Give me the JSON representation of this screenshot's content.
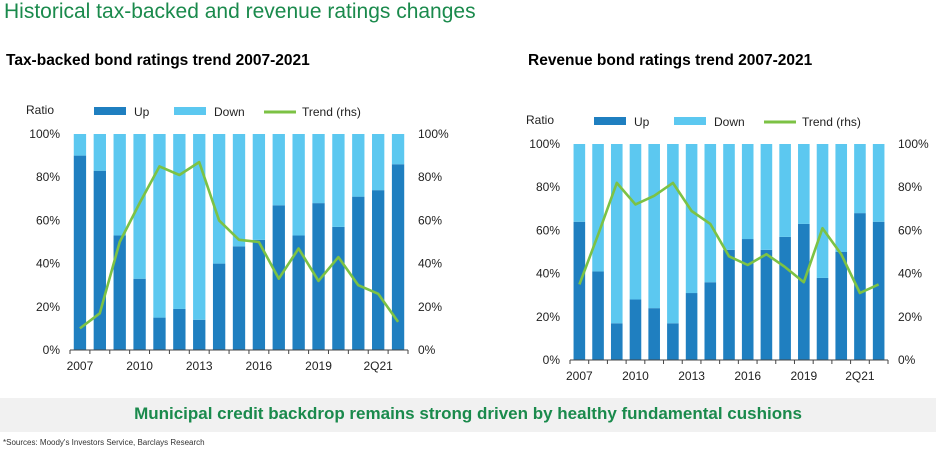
{
  "page": {
    "title": "Historical tax-backed and revenue ratings changes",
    "banner": "Municipal credit backdrop remains strong driven by healthy fundamental cushions",
    "footnote": "*Sources: Moody's Investors Service, Barclays Research"
  },
  "colors": {
    "up": "#1f7fc0",
    "down": "#5cc8f0",
    "trend": "#7cc244",
    "title": "#1a8a4c"
  },
  "chart_data": [
    {
      "type": "bar",
      "stacked": true,
      "title": "Tax-backed bond ratings trend 2007-2021",
      "ylabel": "Ratio",
      "ylim": [
        0,
        100
      ],
      "y2lim": [
        0,
        100
      ],
      "yticks": [
        "0%",
        "20%",
        "40%",
        "60%",
        "80%",
        "100%"
      ],
      "y2ticks": [
        "0%",
        "20%",
        "40%",
        "60%",
        "80%",
        "100%"
      ],
      "xticks": [
        {
          "label": "2007",
          "index": 0
        },
        {
          "label": "2010",
          "index": 3
        },
        {
          "label": "2013",
          "index": 6
        },
        {
          "label": "2016",
          "index": 9
        },
        {
          "label": "2019",
          "index": 12
        },
        {
          "label": "2Q21",
          "index": 15
        }
      ],
      "legend": [
        "Up",
        "Down",
        "Trend (rhs)"
      ],
      "legend_position": "top",
      "series": [
        {
          "name": "Up",
          "values": [
            90,
            83,
            53,
            33,
            15,
            19,
            14,
            40,
            48,
            51,
            67,
            53,
            68,
            57,
            71,
            74,
            86
          ]
        },
        {
          "name": "Down",
          "values": [
            10,
            17,
            47,
            67,
            85,
            81,
            86,
            60,
            52,
            49,
            33,
            47,
            32,
            43,
            29,
            26,
            14
          ]
        },
        {
          "name": "Trend (rhs)",
          "axis": "right",
          "values": [
            10,
            17,
            50,
            68,
            85,
            81,
            87,
            60,
            51,
            50,
            33,
            47,
            32,
            43,
            30,
            26,
            13
          ]
        }
      ]
    },
    {
      "type": "bar",
      "stacked": true,
      "title": "Revenue bond ratings trend 2007-2021",
      "ylabel": "Ratio",
      "ylim": [
        0,
        100
      ],
      "y2lim": [
        0,
        100
      ],
      "yticks": [
        "0%",
        "20%",
        "40%",
        "60%",
        "80%",
        "100%"
      ],
      "y2ticks": [
        "0%",
        "20%",
        "40%",
        "60%",
        "80%",
        "100%"
      ],
      "xticks": [
        {
          "label": "2007",
          "index": 0
        },
        {
          "label": "2010",
          "index": 3
        },
        {
          "label": "2013",
          "index": 6
        },
        {
          "label": "2016",
          "index": 9
        },
        {
          "label": "2019",
          "index": 12
        },
        {
          "label": "2Q21",
          "index": 15
        }
      ],
      "legend": [
        "Up",
        "Down",
        "Trend (rhs)"
      ],
      "legend_position": "top",
      "series": [
        {
          "name": "Up",
          "values": [
            64,
            41,
            17,
            28,
            24,
            17,
            31,
            36,
            51,
            56,
            51,
            57,
            63,
            38,
            50,
            68,
            64
          ]
        },
        {
          "name": "Down",
          "values": [
            36,
            59,
            83,
            72,
            76,
            83,
            69,
            64,
            49,
            44,
            49,
            43,
            37,
            62,
            50,
            32,
            36
          ]
        },
        {
          "name": "Trend (rhs)",
          "axis": "right",
          "values": [
            35,
            58,
            82,
            72,
            76,
            82,
            69,
            63,
            48,
            44,
            49,
            43,
            36,
            61,
            49,
            31,
            35
          ]
        }
      ]
    }
  ]
}
